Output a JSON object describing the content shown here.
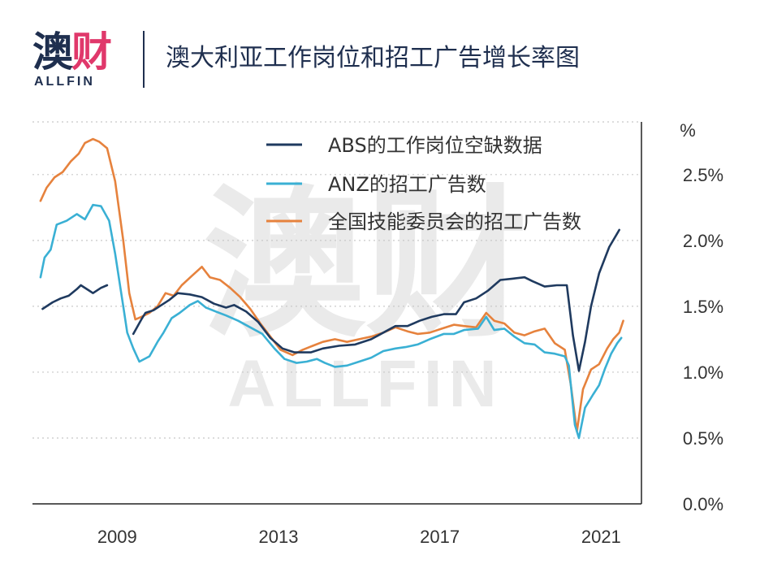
{
  "brand": {
    "logo_cn": "澳财",
    "logo_en": "ALLFIN",
    "watermark_cn": "澳财",
    "watermark_en": "ALLFIN"
  },
  "title": "澳大利亚工作岗位和招工广告增长率图",
  "colors": {
    "abs": "#1f3a5f",
    "anz": "#3ab0d4",
    "nsc": "#e6823d",
    "axis": "#222222",
    "grid": "#c8c8c8",
    "text": "#333333"
  },
  "chart_data": {
    "type": "line",
    "title": "澳大利亚工作岗位和招工广告增长率图",
    "y_unit_label": "%",
    "ylim": [
      0,
      2.9
    ],
    "xlim": [
      2006.9,
      2022.0
    ],
    "x_ticks": [
      2009,
      2013,
      2017,
      2021
    ],
    "x_tick_labels": [
      "2009",
      "2013",
      "2017",
      "2021"
    ],
    "y_ticks": [
      0.0,
      0.5,
      1.0,
      1.5,
      2.0,
      2.5
    ],
    "y_tick_labels": [
      "0.0%",
      "0.5%",
      "1.0%",
      "1.5%",
      "2.0%",
      "2.5%"
    ],
    "grid": "horizontal dotted",
    "legend_position": "top-right",
    "series": [
      {
        "name": "ABS的工作岗位空缺数据",
        "color_key": "abs",
        "segments": [
          [
            [
              2007.15,
              1.48
            ],
            [
              2007.4,
              1.53
            ],
            [
              2007.6,
              1.56
            ],
            [
              2007.8,
              1.58
            ],
            [
              2008.0,
              1.63
            ],
            [
              2008.1,
              1.66
            ],
            [
              2008.3,
              1.62
            ],
            [
              2008.4,
              1.6
            ],
            [
              2008.6,
              1.64
            ],
            [
              2008.75,
              1.66
            ]
          ],
          [
            [
              2009.4,
              1.29
            ],
            [
              2009.6,
              1.4
            ],
            [
              2009.7,
              1.45
            ],
            [
              2009.9,
              1.47
            ],
            [
              2010.1,
              1.51
            ],
            [
              2010.3,
              1.55
            ],
            [
              2010.5,
              1.6
            ],
            [
              2010.8,
              1.59
            ],
            [
              2011.1,
              1.57
            ],
            [
              2011.4,
              1.52
            ],
            [
              2011.7,
              1.49
            ],
            [
              2011.9,
              1.51
            ],
            [
              2012.2,
              1.46
            ],
            [
              2012.5,
              1.38
            ],
            [
              2012.8,
              1.26
            ],
            [
              2013.1,
              1.18
            ],
            [
              2013.4,
              1.15
            ],
            [
              2013.8,
              1.15
            ],
            [
              2014.1,
              1.18
            ],
            [
              2014.5,
              1.2
            ],
            [
              2014.9,
              1.21
            ],
            [
              2015.3,
              1.25
            ],
            [
              2015.6,
              1.3
            ],
            [
              2015.9,
              1.35
            ],
            [
              2016.2,
              1.35
            ],
            [
              2016.5,
              1.39
            ],
            [
              2016.8,
              1.42
            ],
            [
              2017.1,
              1.44
            ],
            [
              2017.4,
              1.44
            ],
            [
              2017.6,
              1.53
            ],
            [
              2017.9,
              1.56
            ],
            [
              2018.2,
              1.62
            ],
            [
              2018.5,
              1.7
            ],
            [
              2018.8,
              1.71
            ],
            [
              2019.1,
              1.72
            ],
            [
              2019.3,
              1.69
            ],
            [
              2019.6,
              1.65
            ],
            [
              2019.9,
              1.66
            ],
            [
              2020.15,
              1.66
            ],
            [
              2020.3,
              1.28
            ],
            [
              2020.45,
              1.01
            ],
            [
              2020.6,
              1.23
            ],
            [
              2020.75,
              1.5
            ],
            [
              2020.95,
              1.75
            ],
            [
              2021.2,
              1.95
            ],
            [
              2021.45,
              2.08
            ]
          ]
        ]
      },
      {
        "name": "ANZ的招工广告数",
        "color_key": "anz",
        "segments": [
          [
            [
              2007.1,
              1.72
            ],
            [
              2007.2,
              1.87
            ],
            [
              2007.35,
              1.93
            ],
            [
              2007.5,
              2.12
            ],
            [
              2007.75,
              2.15
            ],
            [
              2008.0,
              2.2
            ],
            [
              2008.2,
              2.16
            ],
            [
              2008.4,
              2.27
            ],
            [
              2008.6,
              2.26
            ],
            [
              2008.8,
              2.15
            ],
            [
              2008.95,
              1.9
            ],
            [
              2009.15,
              1.5
            ],
            [
              2009.25,
              1.3
            ],
            [
              2009.4,
              1.18
            ],
            [
              2009.55,
              1.08
            ],
            [
              2009.8,
              1.12
            ],
            [
              2010.0,
              1.23
            ],
            [
              2010.15,
              1.3
            ],
            [
              2010.35,
              1.41
            ],
            [
              2010.55,
              1.45
            ],
            [
              2010.8,
              1.51
            ],
            [
              2011.0,
              1.54
            ],
            [
              2011.2,
              1.49
            ],
            [
              2011.45,
              1.46
            ],
            [
              2011.7,
              1.43
            ],
            [
              2012.0,
              1.39
            ],
            [
              2012.3,
              1.34
            ],
            [
              2012.6,
              1.29
            ],
            [
              2012.9,
              1.18
            ],
            [
              2013.15,
              1.1
            ],
            [
              2013.45,
              1.07
            ],
            [
              2013.7,
              1.08
            ],
            [
              2013.95,
              1.1
            ],
            [
              2014.15,
              1.07
            ],
            [
              2014.4,
              1.04
            ],
            [
              2014.7,
              1.05
            ],
            [
              2015.0,
              1.08
            ],
            [
              2015.3,
              1.11
            ],
            [
              2015.6,
              1.16
            ],
            [
              2015.9,
              1.18
            ],
            [
              2016.15,
              1.19
            ],
            [
              2016.45,
              1.21
            ],
            [
              2016.75,
              1.25
            ],
            [
              2017.1,
              1.29
            ],
            [
              2017.35,
              1.29
            ],
            [
              2017.6,
              1.32
            ],
            [
              2017.95,
              1.33
            ],
            [
              2018.15,
              1.42
            ],
            [
              2018.35,
              1.32
            ],
            [
              2018.6,
              1.33
            ],
            [
              2018.85,
              1.27
            ],
            [
              2019.1,
              1.22
            ],
            [
              2019.35,
              1.21
            ],
            [
              2019.6,
              1.15
            ],
            [
              2019.85,
              1.14
            ],
            [
              2020.1,
              1.12
            ],
            [
              2020.2,
              1.05
            ],
            [
              2020.35,
              0.6
            ],
            [
              2020.45,
              0.5
            ],
            [
              2020.6,
              0.73
            ],
            [
              2020.8,
              0.83
            ],
            [
              2020.95,
              0.9
            ],
            [
              2021.1,
              1.03
            ],
            [
              2021.25,
              1.14
            ],
            [
              2021.4,
              1.22
            ],
            [
              2021.5,
              1.26
            ]
          ]
        ]
      },
      {
        "name": "全国技能委员会的招工广告数",
        "color_key": "nsc",
        "segments": [
          [
            [
              2007.1,
              2.3
            ],
            [
              2007.25,
              2.4
            ],
            [
              2007.45,
              2.48
            ],
            [
              2007.65,
              2.52
            ],
            [
              2007.85,
              2.6
            ],
            [
              2008.05,
              2.66
            ],
            [
              2008.2,
              2.74
            ],
            [
              2008.4,
              2.77
            ],
            [
              2008.55,
              2.75
            ],
            [
              2008.75,
              2.7
            ],
            [
              2008.95,
              2.45
            ],
            [
              2009.15,
              2.0
            ],
            [
              2009.3,
              1.6
            ],
            [
              2009.45,
              1.4
            ],
            [
              2009.6,
              1.42
            ],
            [
              2009.8,
              1.45
            ],
            [
              2010.0,
              1.5
            ],
            [
              2010.2,
              1.6
            ],
            [
              2010.4,
              1.58
            ],
            [
              2010.6,
              1.66
            ],
            [
              2010.85,
              1.73
            ],
            [
              2011.1,
              1.8
            ],
            [
              2011.3,
              1.72
            ],
            [
              2011.55,
              1.7
            ],
            [
              2011.8,
              1.64
            ],
            [
              2012.05,
              1.57
            ],
            [
              2012.3,
              1.48
            ],
            [
              2012.55,
              1.37
            ],
            [
              2012.8,
              1.27
            ],
            [
              2013.05,
              1.17
            ],
            [
              2013.35,
              1.13
            ],
            [
              2013.6,
              1.17
            ],
            [
              2013.85,
              1.2
            ],
            [
              2014.1,
              1.23
            ],
            [
              2014.4,
              1.25
            ],
            [
              2014.7,
              1.23
            ],
            [
              2015.0,
              1.25
            ],
            [
              2015.3,
              1.27
            ],
            [
              2015.6,
              1.3
            ],
            [
              2015.9,
              1.34
            ],
            [
              2016.2,
              1.31
            ],
            [
              2016.45,
              1.29
            ],
            [
              2016.75,
              1.3
            ],
            [
              2017.05,
              1.33
            ],
            [
              2017.35,
              1.36
            ],
            [
              2017.6,
              1.35
            ],
            [
              2017.9,
              1.34
            ],
            [
              2018.15,
              1.45
            ],
            [
              2018.35,
              1.39
            ],
            [
              2018.6,
              1.37
            ],
            [
              2018.85,
              1.3
            ],
            [
              2019.1,
              1.28
            ],
            [
              2019.35,
              1.31
            ],
            [
              2019.6,
              1.33
            ],
            [
              2019.85,
              1.22
            ],
            [
              2020.1,
              1.17
            ],
            [
              2020.25,
              0.9
            ],
            [
              2020.4,
              0.55
            ],
            [
              2020.55,
              0.87
            ],
            [
              2020.75,
              1.02
            ],
            [
              2020.95,
              1.06
            ],
            [
              2021.15,
              1.18
            ],
            [
              2021.3,
              1.25
            ],
            [
              2021.45,
              1.3
            ],
            [
              2021.55,
              1.39
            ]
          ]
        ]
      }
    ]
  }
}
